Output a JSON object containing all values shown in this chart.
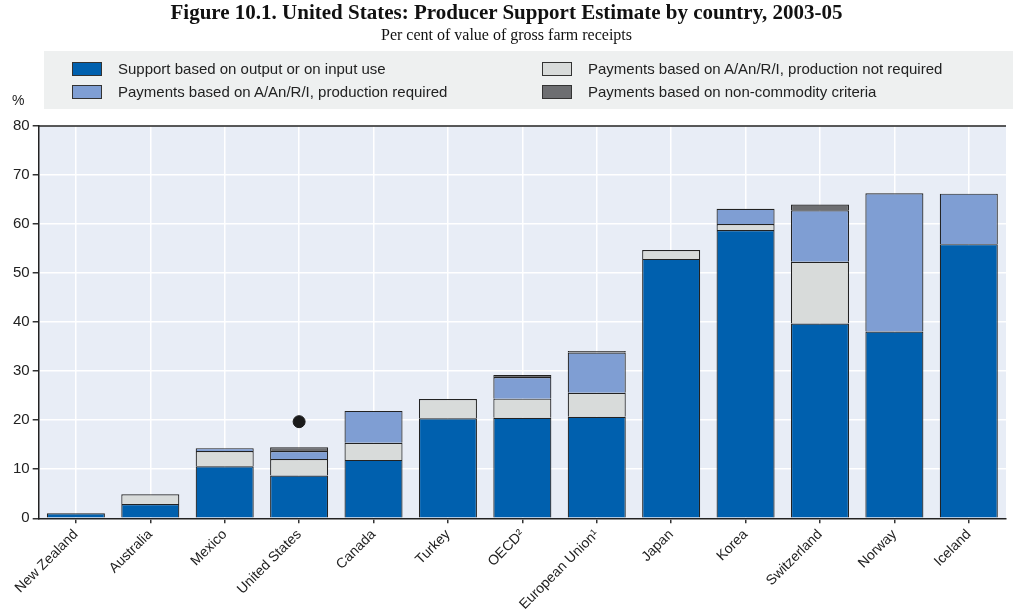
{
  "chart_data": {
    "type": "bar",
    "title": "Figure 10.1. United States: Producer Support Estimate by country, 2003-05",
    "subtitle": "Per cent of value of gross farm receipts",
    "ylabel": "%",
    "categories": [
      "New Zealand",
      "Australia",
      "Mexico",
      "United States",
      "Canada",
      "Turkey",
      "OECD²",
      "European Union¹",
      "Japan",
      "Korea",
      "Switzerland",
      "Norway",
      "Iceland"
    ],
    "stacked": true,
    "series": [
      {
        "name": "Support based on output or on input use",
        "color": "#0060ae",
        "values": [
          1.0,
          2.9,
          10.6,
          8.7,
          11.9,
          20.4,
          20.5,
          20.7,
          52.9,
          58.8,
          39.7,
          38.1,
          55.9
        ]
      },
      {
        "name": "Payments based on A/An/R/I, production not required",
        "color": "#d8dbda",
        "values": [
          null,
          2.0,
          3.1,
          3.4,
          3.5,
          3.9,
          3.9,
          4.9,
          1.8,
          1.2,
          12.6,
          null,
          null
        ]
      },
      {
        "name": "Payments based on A/An/R/I, production required",
        "color": "#7f9ed3",
        "values": [
          null,
          null,
          0.6,
          1.6,
          6.5,
          null,
          4.4,
          8.2,
          null,
          3.1,
          10.5,
          28.2,
          10.3
        ]
      },
      {
        "name": "Payments based on non-commodity criteria",
        "color": "#6d6e71",
        "values": [
          null,
          null,
          null,
          0.8,
          null,
          null,
          0.4,
          0.3,
          null,
          null,
          1.2,
          null,
          null
        ]
      },
      {
        "type": "scatter",
        "color": "#1a1a1a",
        "x": [
          "United States"
        ],
        "values": [
          19.7
        ],
        "marker": "circle"
      }
    ],
    "ylim": [
      0,
      80
    ],
    "yticks": [
      0,
      10,
      20,
      30,
      40,
      50,
      60,
      70,
      80
    ],
    "grid": true,
    "legend": "top"
  }
}
